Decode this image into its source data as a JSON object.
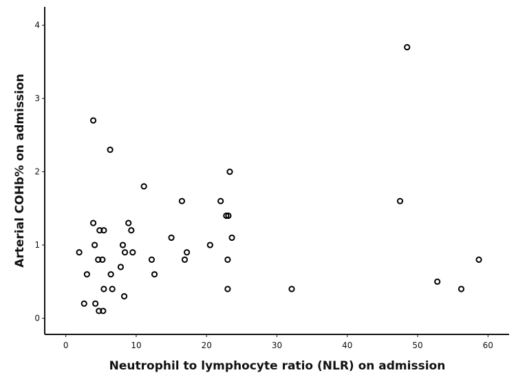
{
  "chart_data": {
    "type": "scatter",
    "title": "",
    "xlabel": "Neutrophil to lymphocyte ratio (NLR) on admission",
    "ylabel": "Arterial COHb% on admission",
    "xlim": [
      -3,
      63
    ],
    "ylim": [
      -0.22,
      4.25
    ],
    "xticks": [
      0,
      10,
      20,
      30,
      40,
      50,
      60
    ],
    "yticks": [
      0,
      1,
      2,
      3,
      4
    ],
    "grid": false,
    "legend": "none",
    "marker_color": "#000000",
    "points": [
      {
        "x": 3.9,
        "y": 2.7
      },
      {
        "x": 6.3,
        "y": 2.3
      },
      {
        "x": 48.5,
        "y": 3.7
      },
      {
        "x": 11.1,
        "y": 1.8
      },
      {
        "x": 23.3,
        "y": 2.0
      },
      {
        "x": 16.5,
        "y": 1.6
      },
      {
        "x": 22.0,
        "y": 1.6
      },
      {
        "x": 47.5,
        "y": 1.6
      },
      {
        "x": 3.9,
        "y": 1.3
      },
      {
        "x": 4.8,
        "y": 1.2
      },
      {
        "x": 5.4,
        "y": 1.2
      },
      {
        "x": 8.9,
        "y": 1.3
      },
      {
        "x": 9.3,
        "y": 1.2
      },
      {
        "x": 22.8,
        "y": 1.4
      },
      {
        "x": 23.1,
        "y": 1.4
      },
      {
        "x": 23.6,
        "y": 1.1
      },
      {
        "x": 15.0,
        "y": 1.1
      },
      {
        "x": 4.1,
        "y": 1.0
      },
      {
        "x": 8.1,
        "y": 1.0
      },
      {
        "x": 20.5,
        "y": 1.0
      },
      {
        "x": 1.9,
        "y": 0.9
      },
      {
        "x": 8.4,
        "y": 0.9
      },
      {
        "x": 9.5,
        "y": 0.9
      },
      {
        "x": 17.2,
        "y": 0.9
      },
      {
        "x": 4.6,
        "y": 0.8
      },
      {
        "x": 5.2,
        "y": 0.8
      },
      {
        "x": 12.2,
        "y": 0.8
      },
      {
        "x": 16.9,
        "y": 0.8
      },
      {
        "x": 23.0,
        "y": 0.8
      },
      {
        "x": 58.7,
        "y": 0.8
      },
      {
        "x": 7.8,
        "y": 0.7
      },
      {
        "x": 3.0,
        "y": 0.6
      },
      {
        "x": 6.4,
        "y": 0.6
      },
      {
        "x": 12.6,
        "y": 0.6
      },
      {
        "x": 5.4,
        "y": 0.4
      },
      {
        "x": 6.6,
        "y": 0.4
      },
      {
        "x": 23.0,
        "y": 0.4
      },
      {
        "x": 32.1,
        "y": 0.4
      },
      {
        "x": 52.8,
        "y": 0.5
      },
      {
        "x": 56.2,
        "y": 0.4
      },
      {
        "x": 8.3,
        "y": 0.3
      },
      {
        "x": 2.6,
        "y": 0.2
      },
      {
        "x": 4.2,
        "y": 0.2
      },
      {
        "x": 4.7,
        "y": 0.1
      },
      {
        "x": 5.3,
        "y": 0.1
      }
    ]
  }
}
